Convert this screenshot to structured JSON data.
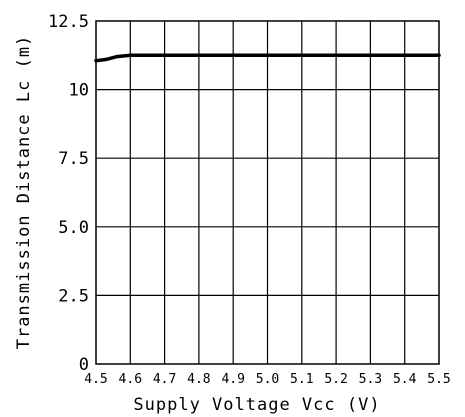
{
  "chart_data": {
    "type": "line",
    "title": "",
    "xlabel": "Supply Voltage Vcc (V)",
    "ylabel": "Transmission Distance Lc (m)",
    "xlim": [
      4.5,
      5.5
    ],
    "ylim": [
      0,
      12.5
    ],
    "x_ticks": [
      "4.5",
      "4.6",
      "4.7",
      "4.8",
      "4.9",
      "5.0",
      "5.1",
      "5.2",
      "5.3",
      "5.4",
      "5.5"
    ],
    "y_ticks": [
      "0",
      "2.5",
      "5.0",
      "7.5",
      "10",
      "12.5"
    ],
    "grid": true,
    "series": [
      {
        "x": [
          4.5,
          4.53,
          4.56,
          4.6,
          4.7,
          4.8,
          4.9,
          5.0,
          5.1,
          5.2,
          5.3,
          5.4,
          5.5
        ],
        "values": [
          11.05,
          11.1,
          11.2,
          11.25,
          11.25,
          11.25,
          11.25,
          11.25,
          11.25,
          11.25,
          11.25,
          11.25,
          11.25
        ]
      }
    ],
    "colors": {
      "line": "#000000",
      "grid": "#000000",
      "background": "#ffffff"
    }
  }
}
